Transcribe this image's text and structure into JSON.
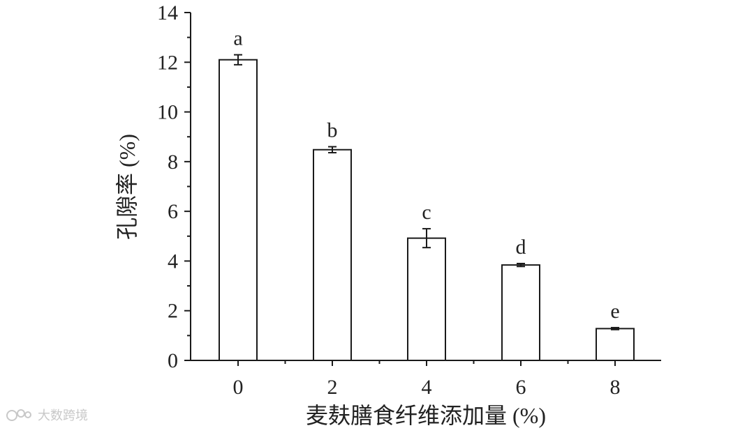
{
  "chart_data": {
    "type": "bar",
    "categories": [
      "0",
      "2",
      "4",
      "6",
      "8"
    ],
    "values": [
      12.1,
      8.48,
      4.92,
      3.84,
      1.28
    ],
    "errors": [
      0.2,
      0.12,
      0.38,
      0.06,
      0.04
    ],
    "significance_labels": [
      "a",
      "b",
      "c",
      "d",
      "e"
    ],
    "xlabel": "麦麸膳食纤维添加量 (%)",
    "ylabel": "孔隙率 (%)",
    "ylim": [
      0,
      14
    ],
    "yticks": [
      "0",
      "2",
      "4",
      "6",
      "8",
      "10",
      "12",
      "14"
    ],
    "grid": false,
    "bar_fill": "#ffffff",
    "bar_stroke": "#1a1a1a"
  },
  "watermark": {
    "text": "大数跨境"
  }
}
